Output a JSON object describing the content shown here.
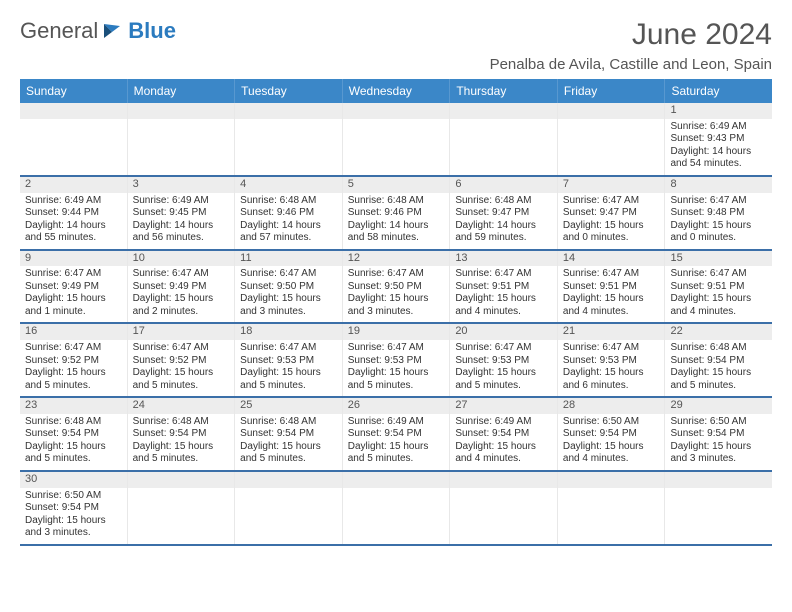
{
  "logo": {
    "text1": "General",
    "text2": "Blue"
  },
  "title": "June 2024",
  "location": "Penalba de Avila, Castille and Leon, Spain",
  "colors": {
    "header_bg": "#3b87c8",
    "header_text": "#ffffff",
    "row_border": "#3b6fa8",
    "daynum_bg": "#ededed",
    "body_text": "#333333",
    "logo_blue": "#2b7bbf"
  },
  "day_headers": [
    "Sunday",
    "Monday",
    "Tuesday",
    "Wednesday",
    "Thursday",
    "Friday",
    "Saturday"
  ],
  "weeks": [
    [
      {
        "empty": true
      },
      {
        "empty": true
      },
      {
        "empty": true
      },
      {
        "empty": true
      },
      {
        "empty": true
      },
      {
        "empty": true
      },
      {
        "n": "1",
        "sr": "Sunrise: 6:49 AM",
        "ss": "Sunset: 9:43 PM",
        "dl": "Daylight: 14 hours and 54 minutes."
      }
    ],
    [
      {
        "n": "2",
        "sr": "Sunrise: 6:49 AM",
        "ss": "Sunset: 9:44 PM",
        "dl": "Daylight: 14 hours and 55 minutes."
      },
      {
        "n": "3",
        "sr": "Sunrise: 6:49 AM",
        "ss": "Sunset: 9:45 PM",
        "dl": "Daylight: 14 hours and 56 minutes."
      },
      {
        "n": "4",
        "sr": "Sunrise: 6:48 AM",
        "ss": "Sunset: 9:46 PM",
        "dl": "Daylight: 14 hours and 57 minutes."
      },
      {
        "n": "5",
        "sr": "Sunrise: 6:48 AM",
        "ss": "Sunset: 9:46 PM",
        "dl": "Daylight: 14 hours and 58 minutes."
      },
      {
        "n": "6",
        "sr": "Sunrise: 6:48 AM",
        "ss": "Sunset: 9:47 PM",
        "dl": "Daylight: 14 hours and 59 minutes."
      },
      {
        "n": "7",
        "sr": "Sunrise: 6:47 AM",
        "ss": "Sunset: 9:47 PM",
        "dl": "Daylight: 15 hours and 0 minutes."
      },
      {
        "n": "8",
        "sr": "Sunrise: 6:47 AM",
        "ss": "Sunset: 9:48 PM",
        "dl": "Daylight: 15 hours and 0 minutes."
      }
    ],
    [
      {
        "n": "9",
        "sr": "Sunrise: 6:47 AM",
        "ss": "Sunset: 9:49 PM",
        "dl": "Daylight: 15 hours and 1 minute."
      },
      {
        "n": "10",
        "sr": "Sunrise: 6:47 AM",
        "ss": "Sunset: 9:49 PM",
        "dl": "Daylight: 15 hours and 2 minutes."
      },
      {
        "n": "11",
        "sr": "Sunrise: 6:47 AM",
        "ss": "Sunset: 9:50 PM",
        "dl": "Daylight: 15 hours and 3 minutes."
      },
      {
        "n": "12",
        "sr": "Sunrise: 6:47 AM",
        "ss": "Sunset: 9:50 PM",
        "dl": "Daylight: 15 hours and 3 minutes."
      },
      {
        "n": "13",
        "sr": "Sunrise: 6:47 AM",
        "ss": "Sunset: 9:51 PM",
        "dl": "Daylight: 15 hours and 4 minutes."
      },
      {
        "n": "14",
        "sr": "Sunrise: 6:47 AM",
        "ss": "Sunset: 9:51 PM",
        "dl": "Daylight: 15 hours and 4 minutes."
      },
      {
        "n": "15",
        "sr": "Sunrise: 6:47 AM",
        "ss": "Sunset: 9:51 PM",
        "dl": "Daylight: 15 hours and 4 minutes."
      }
    ],
    [
      {
        "n": "16",
        "sr": "Sunrise: 6:47 AM",
        "ss": "Sunset: 9:52 PM",
        "dl": "Daylight: 15 hours and 5 minutes."
      },
      {
        "n": "17",
        "sr": "Sunrise: 6:47 AM",
        "ss": "Sunset: 9:52 PM",
        "dl": "Daylight: 15 hours and 5 minutes."
      },
      {
        "n": "18",
        "sr": "Sunrise: 6:47 AM",
        "ss": "Sunset: 9:53 PM",
        "dl": "Daylight: 15 hours and 5 minutes."
      },
      {
        "n": "19",
        "sr": "Sunrise: 6:47 AM",
        "ss": "Sunset: 9:53 PM",
        "dl": "Daylight: 15 hours and 5 minutes."
      },
      {
        "n": "20",
        "sr": "Sunrise: 6:47 AM",
        "ss": "Sunset: 9:53 PM",
        "dl": "Daylight: 15 hours and 5 minutes."
      },
      {
        "n": "21",
        "sr": "Sunrise: 6:47 AM",
        "ss": "Sunset: 9:53 PM",
        "dl": "Daylight: 15 hours and 6 minutes."
      },
      {
        "n": "22",
        "sr": "Sunrise: 6:48 AM",
        "ss": "Sunset: 9:54 PM",
        "dl": "Daylight: 15 hours and 5 minutes."
      }
    ],
    [
      {
        "n": "23",
        "sr": "Sunrise: 6:48 AM",
        "ss": "Sunset: 9:54 PM",
        "dl": "Daylight: 15 hours and 5 minutes."
      },
      {
        "n": "24",
        "sr": "Sunrise: 6:48 AM",
        "ss": "Sunset: 9:54 PM",
        "dl": "Daylight: 15 hours and 5 minutes."
      },
      {
        "n": "25",
        "sr": "Sunrise: 6:48 AM",
        "ss": "Sunset: 9:54 PM",
        "dl": "Daylight: 15 hours and 5 minutes."
      },
      {
        "n": "26",
        "sr": "Sunrise: 6:49 AM",
        "ss": "Sunset: 9:54 PM",
        "dl": "Daylight: 15 hours and 5 minutes."
      },
      {
        "n": "27",
        "sr": "Sunrise: 6:49 AM",
        "ss": "Sunset: 9:54 PM",
        "dl": "Daylight: 15 hours and 4 minutes."
      },
      {
        "n": "28",
        "sr": "Sunrise: 6:50 AM",
        "ss": "Sunset: 9:54 PM",
        "dl": "Daylight: 15 hours and 4 minutes."
      },
      {
        "n": "29",
        "sr": "Sunrise: 6:50 AM",
        "ss": "Sunset: 9:54 PM",
        "dl": "Daylight: 15 hours and 3 minutes."
      }
    ],
    [
      {
        "n": "30",
        "sr": "Sunrise: 6:50 AM",
        "ss": "Sunset: 9:54 PM",
        "dl": "Daylight: 15 hours and 3 minutes."
      },
      {
        "empty": true
      },
      {
        "empty": true
      },
      {
        "empty": true
      },
      {
        "empty": true
      },
      {
        "empty": true
      },
      {
        "empty": true
      }
    ]
  ]
}
